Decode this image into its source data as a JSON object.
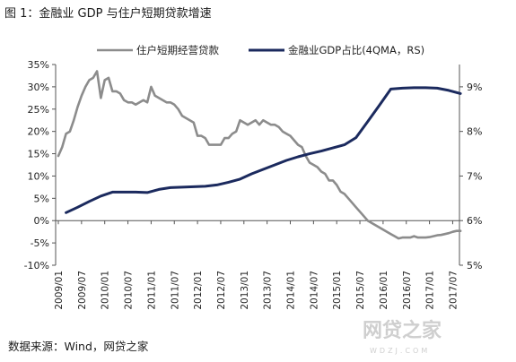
{
  "title": "图 1：金融业 GDP 与住户短期贷款增速",
  "source": "数据来源：Wind，网贷之家",
  "watermark": {
    "text": "网贷之家",
    "sub": "WDZJ.COM"
  },
  "chart_data": {
    "type": "line",
    "legend_position": "top",
    "grid": false,
    "left_axis": {
      "ylim": [
        -10,
        35
      ],
      "ticks": [
        "-10%",
        "-5%",
        "0%",
        "5%",
        "10%",
        "15%",
        "20%",
        "25%",
        "30%",
        "35%"
      ]
    },
    "right_axis": {
      "ylim": [
        5,
        9.5
      ],
      "ticks": [
        "5%",
        "6%",
        "7%",
        "8%",
        "9%"
      ]
    },
    "x_ticks": [
      "2009/01",
      "2009/07",
      "2010/01",
      "2010/07",
      "2011/01",
      "2011/07",
      "2012/01",
      "2012/07",
      "2013/01",
      "2013/07",
      "2014/01",
      "2014/07",
      "2015/01",
      "2015/07",
      "2016/01",
      "2016/07",
      "2017/01",
      "2017/07"
    ],
    "series": [
      {
        "name": "住户短期经营贷款",
        "axis": "left",
        "color": "#8c8c8c",
        "x": [
          "2009/01",
          "2009/02",
          "2009/03",
          "2009/04",
          "2009/05",
          "2009/06",
          "2009/07",
          "2009/08",
          "2009/09",
          "2009/10",
          "2009/11",
          "2009/12",
          "2010/01",
          "2010/02",
          "2010/03",
          "2010/04",
          "2010/05",
          "2010/06",
          "2010/07",
          "2010/08",
          "2010/09",
          "2010/10",
          "2010/11",
          "2010/12",
          "2011/01",
          "2011/02",
          "2011/03",
          "2011/04",
          "2011/05",
          "2011/06",
          "2011/07",
          "2011/08",
          "2011/09",
          "2011/10",
          "2011/11",
          "2011/12",
          "2012/01",
          "2012/02",
          "2012/03",
          "2012/04",
          "2012/05",
          "2012/06",
          "2012/07",
          "2012/08",
          "2012/09",
          "2012/10",
          "2012/11",
          "2012/12",
          "2013/01",
          "2013/02",
          "2013/03",
          "2013/04",
          "2013/05",
          "2013/06",
          "2013/07",
          "2013/08",
          "2013/09",
          "2013/10",
          "2013/11",
          "2013/12",
          "2014/01",
          "2014/02",
          "2014/03",
          "2014/04",
          "2014/05",
          "2014/06",
          "2014/07",
          "2014/08",
          "2014/09",
          "2014/10",
          "2014/11",
          "2014/12",
          "2015/01",
          "2015/02",
          "2015/03",
          "2015/04",
          "2015/05",
          "2015/06",
          "2015/07",
          "2015/08",
          "2015/09",
          "2015/10",
          "2015/11",
          "2015/12",
          "2016/01",
          "2016/02",
          "2016/03",
          "2016/04",
          "2016/05",
          "2016/06",
          "2016/07",
          "2016/08",
          "2016/09",
          "2016/10",
          "2016/11",
          "2016/12",
          "2017/01",
          "2017/02",
          "2017/03",
          "2017/04",
          "2017/05",
          "2017/06",
          "2017/07",
          "2017/08",
          "2017/09"
        ],
        "values": [
          14.5,
          16.5,
          19.5,
          20,
          22.5,
          25.5,
          28,
          30,
          31.5,
          32,
          33.5,
          27.5,
          31.5,
          32,
          29,
          29,
          28.5,
          27,
          26.5,
          26.5,
          26,
          26.5,
          27,
          26.5,
          30,
          28,
          27.5,
          27,
          26.5,
          26.5,
          26,
          25,
          23.5,
          23,
          22.5,
          22,
          19,
          19,
          18.5,
          17,
          17,
          17,
          17,
          18.5,
          18.5,
          19.5,
          20,
          22.5,
          22,
          21.5,
          22,
          22.5,
          21.5,
          22.5,
          22,
          21.5,
          21.5,
          21,
          20,
          19.5,
          19,
          18,
          17,
          16.5,
          14.5,
          13,
          12.5,
          12,
          11,
          10.5,
          9,
          9,
          8,
          6.5,
          6,
          5,
          4,
          3,
          2,
          1,
          0,
          -0.5,
          -1,
          -1.5,
          -2,
          -2.5,
          -3,
          -3.5,
          -4,
          -3.8,
          -3.8,
          -3.8,
          -3.5,
          -3.8,
          -3.8,
          -3.8,
          -3.7,
          -3.5,
          -3.3,
          -3.2,
          -3,
          -2.8,
          -2.5,
          -2.3,
          -2.3
        ]
      },
      {
        "name": "金融业GDP占比(4QMA，RS)",
        "axis": "right",
        "color": "#1b2a5e",
        "x": [
          "2009/03",
          "2009/06",
          "2009/09",
          "2009/12",
          "2010/03",
          "2010/06",
          "2010/09",
          "2010/12",
          "2011/03",
          "2011/06",
          "2011/09",
          "2011/12",
          "2012/03",
          "2012/06",
          "2012/09",
          "2012/12",
          "2013/03",
          "2013/06",
          "2013/09",
          "2013/12",
          "2014/03",
          "2014/06",
          "2014/09",
          "2014/12",
          "2015/03",
          "2015/06",
          "2015/09",
          "2015/12",
          "2016/03",
          "2016/06",
          "2016/09",
          "2016/12",
          "2017/03",
          "2017/06",
          "2017/09"
        ],
        "values": [
          6.18,
          6.3,
          6.43,
          6.55,
          6.64,
          6.64,
          6.64,
          6.63,
          6.7,
          6.74,
          6.75,
          6.76,
          6.77,
          6.8,
          6.86,
          6.93,
          7.05,
          7.15,
          7.25,
          7.35,
          7.43,
          7.5,
          7.56,
          7.63,
          7.7,
          7.86,
          8.22,
          8.58,
          8.95,
          8.97,
          8.98,
          8.98,
          8.97,
          8.92,
          8.85
        ]
      }
    ]
  }
}
